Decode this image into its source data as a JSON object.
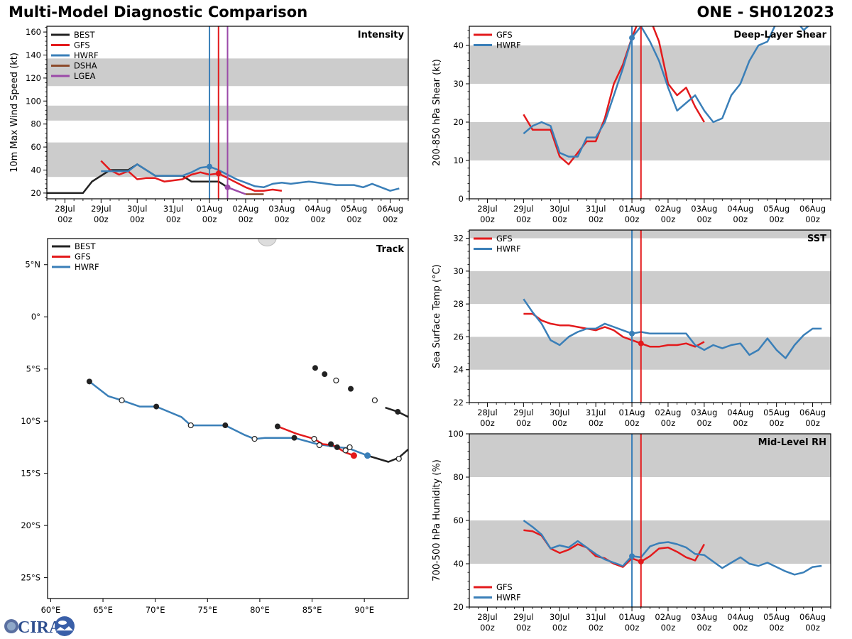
{
  "header": {
    "title": "Multi-Model Diagnostic Comparison",
    "storm_id": "ONE - SH012023"
  },
  "colors": {
    "BEST": "#222222",
    "GFS": "#e31a1c",
    "HWRF": "#3a7fb8",
    "DSHA": "#8c4a2a",
    "LGEA": "#9b4aa8",
    "band": "#cccccc"
  },
  "logo": {
    "text": "CIRA"
  },
  "time_axis": {
    "ticks": [
      {
        "day": 0,
        "label1": "28Jul",
        "label2": "00z"
      },
      {
        "day": 1,
        "label1": "29Jul",
        "label2": "00z"
      },
      {
        "day": 2,
        "label1": "30Jul",
        "label2": "00z"
      },
      {
        "day": 3,
        "label1": "31Jul",
        "label2": "00z"
      },
      {
        "day": 4,
        "label1": "01Aug",
        "label2": "00z"
      },
      {
        "day": 5,
        "label1": "02Aug",
        "label2": "00z"
      },
      {
        "day": 6,
        "label1": "03Aug",
        "label2": "00z"
      },
      {
        "day": 7,
        "label1": "04Aug",
        "label2": "00z"
      },
      {
        "day": 8,
        "label1": "05Aug",
        "label2": "00z"
      },
      {
        "day": 9,
        "label1": "06Aug",
        "label2": "00z"
      }
    ],
    "xlim_days": [
      -0.5,
      9.5
    ]
  },
  "chart_data": [
    {
      "id": "intensity",
      "type": "line",
      "title": "Intensity",
      "ylabel": "10m Max Wind Speed (kt)",
      "ylim": [
        15,
        165
      ],
      "yticks": [
        20,
        40,
        60,
        80,
        100,
        120,
        140,
        160
      ],
      "bands": [
        [
          34,
          64
        ],
        [
          83,
          96
        ],
        [
          113,
          137
        ]
      ],
      "legend": [
        "BEST",
        "GFS",
        "HWRF",
        "DSHA",
        "LGEA"
      ],
      "legend_position": "top-left",
      "init_lines": [
        {
          "model": "HWRF",
          "day": 4.0
        },
        {
          "model": "GFS",
          "day": 4.25
        },
        {
          "model": "LGEA",
          "day": 4.5
        }
      ],
      "series": [
        {
          "name": "BEST",
          "x_days": [
            -0.5,
            0,
            0.25,
            0.5,
            0.75,
            1,
            1.25,
            1.5,
            1.75,
            2,
            2.25,
            2.5,
            2.75,
            3,
            3.25,
            3.5,
            3.75,
            4,
            4.25,
            4.5
          ],
          "values": [
            20,
            20,
            20,
            20,
            30,
            35,
            40,
            40,
            40,
            45,
            40,
            35,
            35,
            35,
            35,
            30,
            30,
            30,
            30,
            25
          ]
        },
        {
          "name": "GFS",
          "x_days": [
            1,
            1.25,
            1.5,
            1.75,
            2,
            2.25,
            2.5,
            2.75,
            3,
            3.25,
            3.5,
            3.75,
            4,
            4.25,
            4.5,
            4.75,
            5,
            5.25,
            5.5,
            5.75,
            6
          ],
          "values": [
            48,
            40,
            36,
            39,
            32,
            33,
            33,
            30,
            31,
            32,
            36,
            38,
            36,
            37,
            33,
            29,
            25,
            22,
            22,
            23,
            22
          ],
          "marker_day": 4.25
        },
        {
          "name": "HWRF",
          "x_days": [
            1,
            1.25,
            1.5,
            1.75,
            2,
            2.25,
            2.5,
            2.75,
            3,
            3.25,
            3.5,
            3.75,
            4,
            4.25,
            4.5,
            4.75,
            5,
            5.25,
            5.5,
            5.75,
            6,
            6.25,
            6.5,
            6.75,
            7,
            7.25,
            7.5,
            7.75,
            8,
            8.25,
            8.5,
            8.75,
            9,
            9.25
          ],
          "values": [
            39,
            39,
            39,
            39,
            45,
            40,
            35,
            35,
            35,
            35,
            38,
            42,
            43,
            40,
            36,
            32,
            29,
            26,
            25,
            28,
            29,
            28,
            29,
            30,
            29,
            28,
            27,
            27,
            27,
            25,
            28,
            25,
            22,
            24
          ],
          "marker_day": 4.0
        },
        {
          "name": "LGEA",
          "x_days": [
            4.5,
            4.75,
            5
          ],
          "values": [
            25,
            22,
            19
          ],
          "marker_day": 4.5
        },
        {
          "name": "DSHA",
          "x_days": [
            5,
            5.25,
            5.5
          ],
          "values": [
            19,
            19,
            19
          ]
        }
      ]
    },
    {
      "id": "shear",
      "type": "line",
      "title": "Deep-Layer Shear",
      "ylabel": "200-850 hPa Shear (kt)",
      "ylim": [
        0,
        45
      ],
      "yticks": [
        0,
        10,
        20,
        30,
        40
      ],
      "bands": [
        [
          10,
          20
        ],
        [
          30,
          40
        ]
      ],
      "legend": [
        "GFS",
        "HWRF"
      ],
      "legend_position": "top-left",
      "init_lines": [
        {
          "model": "HWRF",
          "day": 4.0
        },
        {
          "model": "GFS",
          "day": 4.25
        }
      ],
      "series": [
        {
          "name": "GFS",
          "x_days": [
            1,
            1.25,
            1.5,
            1.75,
            2,
            2.25,
            2.5,
            2.75,
            3,
            3.25,
            3.5,
            3.75,
            4,
            4.25,
            4.5,
            4.75,
            5,
            5.25,
            5.5,
            5.75,
            6
          ],
          "values": [
            22,
            18,
            18,
            18,
            11,
            9,
            12,
            15,
            15,
            21,
            30,
            35,
            42,
            48,
            47,
            41,
            30,
            27,
            29,
            24,
            20
          ],
          "marker_day": 4.25
        },
        {
          "name": "HWRF",
          "x_days": [
            1,
            1.25,
            1.5,
            1.75,
            2,
            2.25,
            2.5,
            2.75,
            3,
            3.25,
            3.5,
            3.75,
            4,
            4.25,
            4.5,
            4.75,
            5,
            5.25,
            5.5,
            5.75,
            6,
            6.25,
            6.5,
            6.75,
            7,
            7.25,
            7.5,
            7.75,
            8,
            8.25,
            8.5,
            8.75,
            9,
            9.25
          ],
          "values": [
            17,
            19,
            20,
            19,
            12,
            11,
            11,
            16,
            16,
            20,
            27,
            34,
            42,
            45,
            41,
            36,
            29,
            23,
            25,
            27,
            23,
            20,
            21,
            27,
            30,
            36,
            40,
            41,
            46,
            48,
            47,
            44,
            46,
            47
          ],
          "marker_day": 4.0
        }
      ]
    },
    {
      "id": "track",
      "type": "scatter",
      "title": "Track",
      "xlabel": "",
      "ylabel": "",
      "xlim": [
        59.7,
        94.2
      ],
      "ylim": [
        -27,
        7.5
      ],
      "xticks": [
        {
          "v": 60,
          "label": "60°E"
        },
        {
          "v": 65,
          "label": "65°E"
        },
        {
          "v": 70,
          "label": "70°E"
        },
        {
          "v": 75,
          "label": "75°E"
        },
        {
          "v": 80,
          "label": "80°E"
        },
        {
          "v": 85,
          "label": "85°E"
        },
        {
          "v": 90,
          "label": "90°E"
        }
      ],
      "yticks": [
        {
          "v": 5,
          "label": "5°N"
        },
        {
          "v": 0,
          "label": "0°"
        },
        {
          "v": -5,
          "label": "5°S"
        },
        {
          "v": -10,
          "label": "10°S"
        },
        {
          "v": -15,
          "label": "15°S"
        },
        {
          "v": -20,
          "label": "20°S"
        },
        {
          "v": -25,
          "label": "25°S"
        }
      ],
      "legend": [
        "BEST",
        "GFS",
        "HWRF"
      ],
      "legend_position": "top-left",
      "series": [
        {
          "name": "HWRF",
          "lon": [
            63.7,
            65.5,
            66.8,
            68.5,
            70.1,
            72.5,
            73.4,
            75.5,
            76.7,
            78.5,
            79.5,
            80.5,
            83.3,
            85.5,
            87.5,
            88.5,
            90.3
          ],
          "lat": [
            -6.2,
            -7.6,
            -8.0,
            -8.6,
            -8.6,
            -9.6,
            -10.4,
            -10.4,
            -10.4,
            -11.3,
            -11.7,
            -11.6,
            -11.6,
            -12.2,
            -12.5,
            -12.6,
            -13.3
          ],
          "filled_markers": [
            [
              63.7,
              -6.2
            ],
            [
              70.1,
              -8.6
            ],
            [
              76.7,
              -10.4
            ],
            [
              83.3,
              -11.6
            ]
          ],
          "open_markers": [
            [
              66.8,
              -8.0
            ],
            [
              73.4,
              -10.4
            ],
            [
              79.5,
              -11.7
            ],
            [
              85.7,
              -12.3
            ],
            [
              88.6,
              -12.5
            ]
          ],
          "end_marker": [
            90.3,
            -13.3
          ]
        },
        {
          "name": "GFS",
          "lon": [
            81.7,
            83.5,
            85.2,
            86.0,
            87.0,
            88.2,
            89.0
          ],
          "lat": [
            -10.5,
            -11.2,
            -11.7,
            -12.2,
            -12.3,
            -13.0,
            -13.3
          ],
          "filled_markers": [
            [
              81.7,
              -10.5
            ],
            [
              86.8,
              -12.2
            ]
          ],
          "open_markers": [
            [
              85.2,
              -11.7
            ],
            [
              88.2,
              -12.8
            ]
          ],
          "end_marker": [
            89.0,
            -13.3
          ]
        },
        {
          "name": "BEST",
          "lon": [
            90.3,
            92.3,
            93.3,
            94.2
          ],
          "lat": [
            -13.3,
            -13.9,
            -13.5,
            -12.7
          ],
          "filled_markers": [
            [
              87.4,
              -12.5
            ]
          ],
          "open_markers": [
            [
              93.3,
              -13.6
            ]
          ]
        },
        {
          "name": "BEST-north",
          "lon": [
            92.0,
            93.2,
            94.2
          ],
          "lat": [
            -8.7,
            -9.1,
            -9.6
          ],
          "filled_markers": [
            [
              85.3,
              -4.9
            ],
            [
              86.2,
              -5.5
            ],
            [
              88.7,
              -6.9
            ],
            [
              93.2,
              -9.1
            ]
          ],
          "open_markers": [
            [
              87.3,
              -6.1
            ],
            [
              91.0,
              -8.0
            ]
          ]
        }
      ]
    },
    {
      "id": "sst",
      "type": "line",
      "title": "SST",
      "ylabel": "Sea Surface Temp (°C)",
      "ylim": [
        22,
        32.5
      ],
      "yticks": [
        22,
        24,
        26,
        28,
        30,
        32
      ],
      "bands": [
        [
          24,
          26
        ],
        [
          28,
          30
        ],
        [
          32,
          33
        ]
      ],
      "legend": [
        "GFS",
        "HWRF"
      ],
      "legend_position": "top-left",
      "init_lines": [
        {
          "model": "HWRF",
          "day": 4.0
        },
        {
          "model": "GFS",
          "day": 4.25
        }
      ],
      "series": [
        {
          "name": "GFS",
          "x_days": [
            1,
            1.25,
            1.5,
            1.75,
            2,
            2.25,
            2.5,
            2.75,
            3,
            3.25,
            3.5,
            3.75,
            4,
            4.25,
            4.5,
            4.75,
            5,
            5.25,
            5.5,
            5.75,
            6
          ],
          "values": [
            27.4,
            27.4,
            27.0,
            26.8,
            26.7,
            26.7,
            26.6,
            26.5,
            26.4,
            26.6,
            26.4,
            26.0,
            25.8,
            25.6,
            25.4,
            25.4,
            25.5,
            25.5,
            25.6,
            25.4,
            25.7
          ],
          "marker_day": 4.25
        },
        {
          "name": "HWRF",
          "x_days": [
            1,
            1.25,
            1.5,
            1.75,
            2,
            2.25,
            2.5,
            2.75,
            3,
            3.25,
            3.5,
            3.75,
            4,
            4.25,
            4.5,
            4.75,
            5,
            5.25,
            5.5,
            5.75,
            6,
            6.25,
            6.5,
            6.75,
            7,
            7.25,
            7.5,
            7.75,
            8,
            8.25,
            8.5,
            8.75,
            9,
            9.25
          ],
          "values": [
            28.3,
            27.5,
            26.8,
            25.8,
            25.5,
            26.0,
            26.3,
            26.5,
            26.5,
            26.8,
            26.6,
            26.4,
            26.2,
            26.3,
            26.2,
            26.2,
            26.2,
            26.2,
            26.2,
            25.5,
            25.2,
            25.5,
            25.3,
            25.5,
            25.6,
            24.9,
            25.2,
            25.9,
            25.2,
            24.7,
            25.5,
            26.1,
            26.5,
            26.5
          ],
          "marker_day": 4.0
        }
      ]
    },
    {
      "id": "rh",
      "type": "line",
      "title": "Mid-Level RH",
      "ylabel": "700-500 hPa Humidity (%)",
      "ylim": [
        20,
        100
      ],
      "yticks": [
        20,
        40,
        60,
        80,
        100
      ],
      "bands": [
        [
          40,
          60
        ],
        [
          80,
          100
        ]
      ],
      "legend": [
        "GFS",
        "HWRF"
      ],
      "legend_position": "bottom-left",
      "init_lines": [
        {
          "model": "HWRF",
          "day": 4.0
        },
        {
          "model": "GFS",
          "day": 4.25
        }
      ],
      "series": [
        {
          "name": "GFS",
          "x_days": [
            1,
            1.25,
            1.5,
            1.75,
            2,
            2.25,
            2.5,
            2.75,
            3,
            3.25,
            3.5,
            3.75,
            4,
            4.25,
            4.5,
            4.75,
            5,
            5.25,
            5.5,
            5.75,
            6
          ],
          "values": [
            55.5,
            55,
            53,
            47,
            45,
            46.5,
            49,
            47.5,
            43.5,
            42.5,
            40,
            38.5,
            42.5,
            41,
            43.5,
            47,
            47.5,
            45.5,
            43,
            41.5,
            49
          ],
          "marker_day": 4.25
        },
        {
          "name": "HWRF",
          "x_days": [
            1,
            1.25,
            1.5,
            1.75,
            2,
            2.25,
            2.5,
            2.75,
            3,
            3.25,
            3.5,
            3.75,
            4,
            4.25,
            4.5,
            4.75,
            5,
            5.25,
            5.5,
            5.75,
            6,
            6.25,
            6.5,
            6.75,
            7,
            7.25,
            7.5,
            7.75,
            8,
            8.25,
            8.5,
            8.75,
            9,
            9.25
          ],
          "values": [
            60,
            57,
            53.5,
            47,
            48.5,
            47.5,
            50.5,
            47.5,
            44.5,
            42,
            40.5,
            39,
            43.5,
            43,
            48,
            49.5,
            50,
            49,
            47.5,
            44.5,
            44,
            41,
            38,
            40.5,
            43,
            40,
            39,
            40.5,
            38.5,
            36.5,
            35,
            36,
            38.5,
            39
          ],
          "marker_day": 4.0
        }
      ]
    }
  ]
}
